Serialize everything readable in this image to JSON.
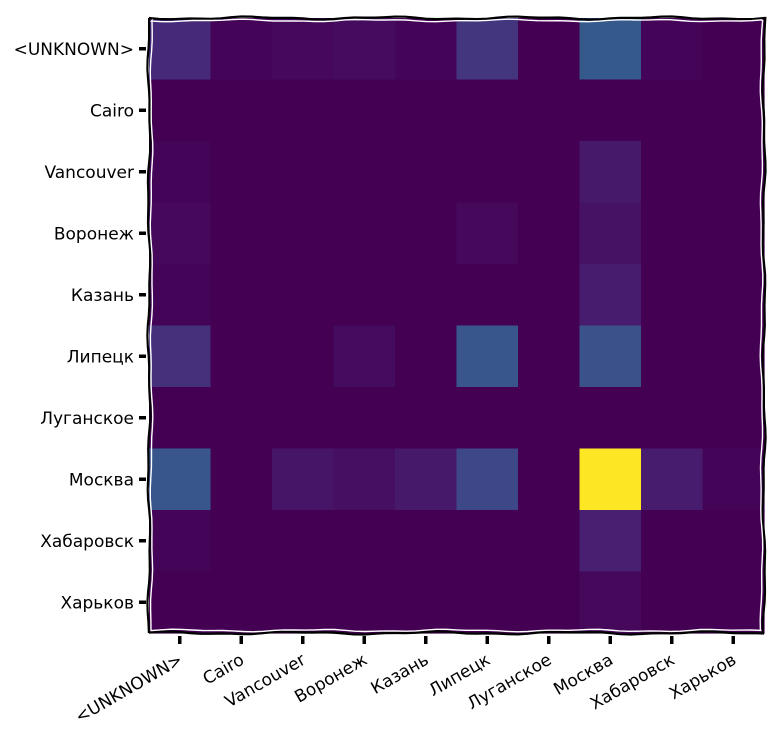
{
  "chart_data": {
    "type": "heatmap",
    "title": "",
    "xlabel": "",
    "ylabel": "",
    "grid": false,
    "colormap": "viridis",
    "value_range": [
      0,
      1
    ],
    "x_categories": [
      "<UNKNOWN>",
      "Cairo",
      "Vancouver",
      "Воронеж",
      "Казань",
      "Липецк",
      "Луганское",
      "Москва",
      "Хабаровск",
      "Харьков"
    ],
    "y_categories": [
      "<UNKNOWN>",
      "Cairo",
      "Vancouver",
      "Воронеж",
      "Казань",
      "Липецк",
      "Луганское",
      "Москва",
      "Хабаровск",
      "Харьков"
    ],
    "values": [
      [
        0.12,
        0.01,
        0.02,
        0.03,
        0.01,
        0.16,
        0.0,
        0.28,
        0.01,
        0.0
      ],
      [
        0.0,
        0.0,
        0.0,
        0.0,
        0.0,
        0.0,
        0.0,
        0.0,
        0.0,
        0.0
      ],
      [
        0.01,
        0.0,
        0.0,
        0.0,
        0.0,
        0.0,
        0.0,
        0.07,
        0.0,
        0.0
      ],
      [
        0.02,
        0.0,
        0.0,
        0.0,
        0.0,
        0.02,
        0.0,
        0.05,
        0.0,
        0.0
      ],
      [
        0.01,
        0.0,
        0.0,
        0.0,
        0.0,
        0.0,
        0.0,
        0.08,
        0.0,
        0.0
      ],
      [
        0.14,
        0.0,
        0.0,
        0.03,
        0.0,
        0.27,
        0.0,
        0.25,
        0.0,
        0.0
      ],
      [
        0.0,
        0.0,
        0.0,
        0.0,
        0.0,
        0.0,
        0.0,
        0.0,
        0.0,
        0.0
      ],
      [
        0.27,
        0.0,
        0.06,
        0.04,
        0.07,
        0.22,
        0.0,
        1.0,
        0.08,
        0.01
      ],
      [
        0.01,
        0.0,
        0.0,
        0.0,
        0.0,
        0.0,
        0.0,
        0.09,
        0.0,
        0.0
      ],
      [
        0.0,
        0.0,
        0.0,
        0.0,
        0.0,
        0.0,
        0.0,
        0.02,
        0.0,
        0.0
      ]
    ]
  }
}
